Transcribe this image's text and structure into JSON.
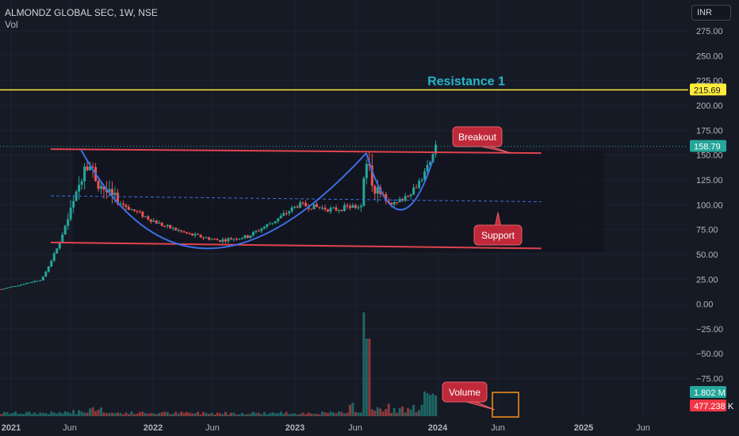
{
  "header": {
    "symbol_line": "ALMONDZ GLOBAL SEC, 1W, NSE",
    "volume_label": "Vol"
  },
  "currency_button": "INR",
  "colors": {
    "up": "#26a69a",
    "down": "#ef5350",
    "channel": "#e0434f",
    "cup": "#3d6fe6",
    "resistance": "#ffeb3b",
    "resistance_label": "#26b5c9",
    "callout": "#c0293a",
    "volume_box": "#f7931a",
    "background": "#161a25"
  },
  "chart_data": {
    "type": "candlestick",
    "title": "ALMONDZ GLOBAL SEC, 1W, NSE",
    "y_axis": {
      "ticks": [
        "275.00",
        "250.00",
        "225.00",
        "200.00",
        "175.00",
        "150.00",
        "125.00",
        "100.00",
        "75.00",
        "50.00",
        "25.00",
        "0.00",
        "−25.00",
        "−50.00",
        "−75.00"
      ],
      "ylim": [
        -85,
        290
      ]
    },
    "x_axis": {
      "ticks": [
        "2021",
        "Jun",
        "2022",
        "Jun",
        "2023",
        "Jun",
        "2024",
        "Jun",
        "2025",
        "Jun"
      ],
      "range": [
        "2021-01",
        "2025-10"
      ]
    },
    "price_path": [
      [
        0,
        15
      ],
      [
        0.28,
        25
      ],
      [
        0.38,
        55
      ],
      [
        0.52,
        110
      ],
      [
        0.58,
        148
      ],
      [
        0.66,
        125
      ],
      [
        0.75,
        108
      ],
      [
        0.9,
        95
      ],
      [
        1.1,
        80
      ],
      [
        1.3,
        70
      ],
      [
        1.5,
        64
      ],
      [
        1.7,
        68
      ],
      [
        1.9,
        85
      ],
      [
        2.05,
        100
      ],
      [
        2.3,
        95
      ],
      [
        2.48,
        100
      ],
      [
        2.52,
        140
      ],
      [
        2.6,
        112
      ],
      [
        2.72,
        100
      ],
      [
        2.84,
        115
      ],
      [
        2.92,
        130
      ],
      [
        2.97,
        150
      ],
      [
        3.0,
        158
      ]
    ],
    "last_price": {
      "label": "158.79",
      "value": 158.79
    },
    "resistance_level": {
      "label": "215.69",
      "value": 215.69
    },
    "volume_labels": [
      "1.802 M",
      "477.238 K"
    ],
    "annotations": [
      "Resistance 1",
      "Breakout",
      "Support",
      "Volume"
    ],
    "channel": {
      "upper": [
        [
          0.34,
          156
        ],
        [
          3.73,
          152
        ]
      ],
      "lower": [
        [
          0.34,
          62
        ],
        [
          3.73,
          56
        ]
      ],
      "mid": [
        [
          0.34,
          109
        ],
        [
          3.73,
          103
        ]
      ]
    },
    "cup": [
      [
        0.55,
        155
      ],
      [
        1.3,
        56
      ],
      [
        2.52,
        152
      ]
    ],
    "handle": [
      [
        2.52,
        152
      ],
      [
        2.75,
        95
      ],
      [
        2.98,
        145
      ]
    ],
    "grid": true
  }
}
